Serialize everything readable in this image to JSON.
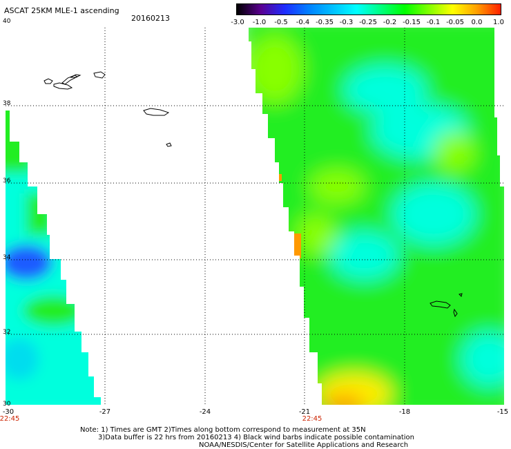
{
  "header": {
    "title": "ASCAT 25KM MLE-1 ascending",
    "date": "20160213"
  },
  "colorbar": {
    "labels": [
      "-3.0",
      "-1.0",
      "-0.5",
      "-0.4",
      "-0.35",
      "-0.3",
      "-0.25",
      "-0.2",
      "-0.15",
      "-0.1",
      "-0.05",
      "0.0",
      "1.0"
    ],
    "colors": [
      "#000000",
      "#5a0090",
      "#1e2cff",
      "#0080ff",
      "#00c0ff",
      "#00ffff",
      "#00ff80",
      "#00ff00",
      "#80ff00",
      "#ffff00",
      "#ffa000",
      "#ff2000"
    ]
  },
  "map": {
    "lat_labels": [
      "40",
      "38",
      "36",
      "34",
      "32",
      "30"
    ],
    "lon_labels": [
      "-30",
      "-27",
      "-24",
      "-21",
      "-18",
      "-15"
    ],
    "time_labels": [
      "22:45",
      "22:45"
    ],
    "colors": {
      "blue": "#1e5cff",
      "cyan": "#00ffdd",
      "green": "#22ee22",
      "lime": "#88ff00",
      "yellow": "#ffee00",
      "orange": "#ff9900",
      "coast": "#000000"
    }
  },
  "notes": [
    "Note: 1) Times are GMT 2)Times along bottom correspond to measurement at 35N",
    "3)Data buffer is 22 hrs from 20160213 4) Black wind barbs indicate possible contamination",
    "NOAA/NESDIS/Center for Satellite Applications and Research"
  ]
}
